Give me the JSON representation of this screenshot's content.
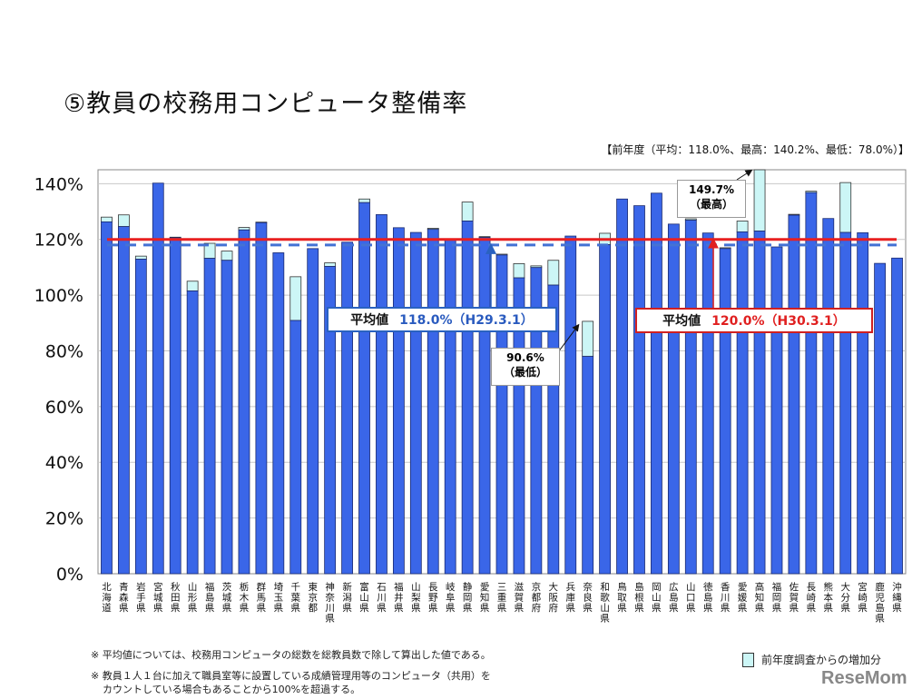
{
  "title": "⑤教員の校務用コンピュータ整備率",
  "previous_year_summary": "【前年度（平均：118.0%、最高：140.2%、最低：78.0%）】",
  "notes": [
    "※ 平均値については、校務用コンピュータの総数を総教員数で除して算出した値である。",
    "※ 教員１人１台に加えて職員室等に設置している成績管理用等のコンピュータ（共用）を",
    "カウントしている場合もあることから100%を超過する。"
  ],
  "legend": {
    "increase_label": "前年度調査からの増加分"
  },
  "logo": "ReseMom",
  "annotations": {
    "avg_prev_label": "平均値",
    "avg_prev_value": "118.0%（H29.3.1）",
    "avg_curr_label": "平均値",
    "avg_curr_value": "120.0%（H30.3.1）",
    "min_value": "90.6%",
    "min_label": "（最低）",
    "max_value": "149.7%",
    "max_label": "（最高）"
  },
  "colors": {
    "bar": "#3a66e8",
    "increase": "#ccf6f6",
    "avg_current": "#e82020",
    "avg_previous": "#4472d4"
  },
  "chart_data": {
    "type": "bar",
    "stacked": true,
    "ylim": [
      0,
      145
    ],
    "yticks": [
      "0%",
      "20%",
      "40%",
      "60%",
      "80%",
      "100%",
      "120%",
      "140%"
    ],
    "ytick_values": [
      0,
      20,
      40,
      60,
      80,
      100,
      120,
      140
    ],
    "grid": true,
    "legend_placement": "bottom-right",
    "categories": [
      "北海道",
      "青森県",
      "岩手県",
      "宮城県",
      "秋田県",
      "山形県",
      "福島県",
      "茨城県",
      "栃木県",
      "群馬県",
      "埼玉県",
      "千葉県",
      "東京都",
      "神奈川県",
      "新潟県",
      "富山県",
      "石川県",
      "福井県",
      "山梨県",
      "長野県",
      "岐阜県",
      "静岡県",
      "愛知県",
      "三重県",
      "滋賀県",
      "京都府",
      "大阪府",
      "兵庫県",
      "奈良県",
      "和歌山県",
      "鳥取県",
      "島根県",
      "岡山県",
      "広島県",
      "山口県",
      "徳島県",
      "香川県",
      "愛媛県",
      "高知県",
      "福岡県",
      "佐賀県",
      "長崎県",
      "熊本県",
      "大分県",
      "宮崎県",
      "鹿児島県",
      "沖縄県"
    ],
    "current": [
      128.0,
      128.8,
      114.0,
      140.2,
      120.8,
      105.0,
      118.6,
      115.8,
      124.3,
      126.2,
      115.2,
      106.6,
      116.7,
      111.6,
      119.0,
      134.5,
      128.9,
      124.2,
      122.5,
      124.0,
      119.9,
      133.4,
      121.0,
      114.7,
      111.3,
      110.5,
      112.5,
      121.2,
      90.6,
      122.2,
      134.5,
      132.1,
      136.6,
      125.5,
      127.4,
      122.3,
      117.0,
      126.6,
      149.7,
      117.3,
      129.0,
      137.3,
      127.5,
      140.4,
      122.4,
      111.4,
      113.3
    ],
    "previous": [
      126.3,
      124.6,
      112.9,
      140.2,
      120.6,
      101.5,
      113.2,
      112.5,
      123.4,
      126.0,
      115.2,
      90.9,
      116.7,
      110.3,
      119.0,
      133.2,
      128.9,
      124.2,
      122.5,
      123.6,
      119.9,
      126.6,
      120.7,
      114.4,
      106.2,
      109.9,
      103.6,
      121.2,
      78.0,
      118.1,
      134.5,
      132.1,
      136.6,
      125.5,
      126.9,
      122.3,
      116.7,
      122.7,
      123.0,
      117.3,
      128.7,
      136.8,
      127.5,
      122.5,
      122.4,
      111.4,
      113.3
    ],
    "reference_lines": [
      {
        "label": "平均値 120.0%（H30.3.1）",
        "value": 120.0,
        "style": "solid"
      },
      {
        "label": "平均値 118.0%（H29.3.1）",
        "value": 118.0,
        "style": "dashed"
      }
    ]
  }
}
